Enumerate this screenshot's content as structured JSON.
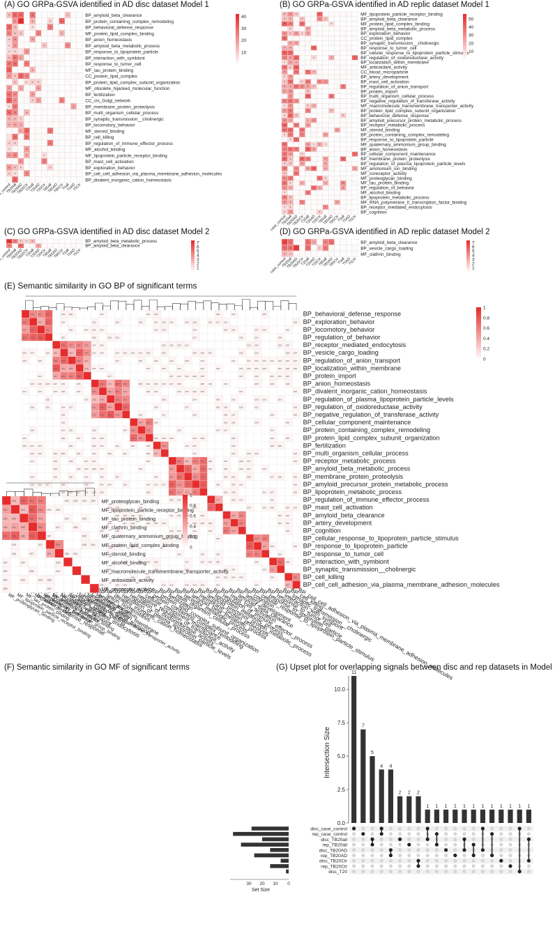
{
  "panels": {
    "A": {
      "title": "(A) GO GRPa-GSVA identified in AD disc dataset Model 1"
    },
    "B": {
      "title": "(B) GO GRPa-GSVA identified in AD replic dataset Model 1"
    },
    "C": {
      "title": "(C) GO GRPa-GSVA identified in AD disc dataset Model 2"
    },
    "D": {
      "title": "(D) GO GRPa-GSVA identified in AD replic dataset Model 2"
    },
    "E": {
      "title": "(E) Semantic similarity in GO BP of significant terms"
    },
    "F": {
      "title": "(F) Semantic similarity in GO MF of significant terms"
    },
    "G": {
      "title": "(G) Upset plot for overlapping signals between disc and rep datasets in Model 1."
    }
  },
  "chart_data": [
    {
      "id": "A",
      "type": "heatmap",
      "title": "(A) GO GRPa-GSVA identified in AD disc dataset Model 1",
      "columns": [
        "case_control",
        "TB20all",
        "TB20AD",
        "TB20Ctr",
        "T20all",
        "T20AD",
        "T20Ctr",
        "TB5all",
        "TB5AD",
        "TB5Ctr",
        "T5all",
        "T5AD",
        "T5Ctr"
      ],
      "rows": [
        "BP_amyloid_beta_clearance",
        "BP_protein_containing_complex_remodeling",
        "BP_behavioral_defense_response",
        "MF_protein_lipid_complex_binding",
        "BP_anion_homeostasis",
        "BP_amyloid_beta_metabolic_process",
        "BP_response_to_lipoprotein_particle",
        "BP_interaction_with_symbiont",
        "BP_response_to_tumor_cell",
        "MF_tau_protein_binding",
        "CC_protein_lipid_complex",
        "BP_protein_lipid_complex_subunit_organization",
        "MF_obsolete_hijacked_molecular_function",
        "BP_fertilization",
        "CC_cis_Golgi_network",
        "BP_membrane_protein_proteolysis",
        "BP_multi_organism_cellular_process",
        "BP_synaptic_transmission__cholinergic",
        "BP_locomotory_behavior",
        "MF_steroid_binding",
        "BP_cell_killing",
        "BP_regulation_of_immune_effector_process",
        "MF_alcohol_binding",
        "MF_lipoprotein_particle_receptor_binding",
        "BP_mast_cell_activation",
        "BP_exploration_behavior",
        "BP_cell_cell_adhesion_via_plasma_membrane_adhesion_molecules",
        "BP_divalent_inorganic_cation_homeostasis"
      ],
      "colorbar": {
        "ticks": [
          40,
          30,
          20,
          10
        ],
        "min": 0,
        "max": 42
      }
    },
    {
      "id": "B",
      "type": "heatmap",
      "title": "(B) GO GRPa-GSVA identified in AD replic dataset Model 1",
      "columns": [
        "case_control",
        "TB20all",
        "TB20AD",
        "TB20Ctr",
        "T20all",
        "T20AD",
        "T20Ctr",
        "TB5all",
        "TB5AD",
        "TB5Ctr",
        "T5all",
        "T5AD",
        "T5Ctr"
      ],
      "rows": [
        "MF_lipoprotein_particle_receptor_binding",
        "BP_amyloid_beta_clearance",
        "MF_protein_lipid_complex_binding",
        "BP_amyloid_beta_metabolic_process",
        "BP_exploration_behavior",
        "CC_protein_lipid_complex",
        "BP_synaptic_transmission__cholinergic",
        "BP_response_to_tumor_cell",
        "BP_cellular_response_to_lipoprotein_particle_stimulus",
        "BP_regulation_of_oxidoreductase_activity",
        "BP_localization_within_membrane",
        "MF_antioxidant_activity",
        "CC_blood_microparticle",
        "BP_artery_development",
        "BP_mast_cell_activation",
        "BP_regulation_of_anion_transport",
        "BP_protein_import",
        "BP_multi_organism_cellular_process",
        "BP_negative_regulation_of_transferase_activity",
        "MF_macromolecule_transmembrane_transporter_activity",
        "BP_protein_lipid_complex_subunit_organization",
        "BP_behavioral_defense_response",
        "BP_amyloid_precursor_protein_metabolic_process",
        "BP_receptor_metabolic_process",
        "MF_steroid_binding",
        "BP_protein_containing_complex_remodeling",
        "BP_response_to_lipoprotein_particle",
        "MF_quaternary_ammonium_group_binding",
        "BP_anion_homeostasis",
        "BP_cellular_component_maintenance",
        "BP_membrane_protein_proteolysis",
        "BP_regulation_of_plasma_lipoprotein_particle_levels",
        "MF_ammonium_ion_binding",
        "MF_coreceptor_activity",
        "MF_proteoglycan_binding",
        "MF_tau_protein_binding",
        "BP_regulation_of_behavior",
        "MF_alcohol_binding",
        "BP_lipoprotein_metabolic_process",
        "MF_RNA_polymerase_II_transcription_factor_binding",
        "BP_receptor_mediated_endocytosis",
        "BP_cognition"
      ],
      "colorbar": {
        "ticks": [
          50,
          40,
          30,
          20,
          10
        ],
        "min": 0,
        "max": 56
      }
    },
    {
      "id": "C",
      "type": "heatmap",
      "title": "(C) GO GRPa-GSVA identified in AD disc dataset Model 2",
      "columns": [
        "case_control",
        "TB20all",
        "TB20AD",
        "TB20Ctr",
        "T20all",
        "T20AD",
        "T20Ctr",
        "TB5all",
        "TB5AD",
        "TB5Ctr",
        "T5all",
        "T5AD",
        "T5Ctr"
      ],
      "rows": [
        "BP_amyloid_beta_metabolic_process",
        "BP_amyloid_beta_clearance"
      ],
      "colorbar": {
        "ticks": [
          7,
          6,
          5,
          4,
          3,
          2,
          1
        ],
        "min": 0,
        "max": 7.5
      }
    },
    {
      "id": "D",
      "type": "heatmap",
      "title": "(D) GO GRPa-GSVA identified in AD replic dataset Model 2",
      "columns": [
        "case_control",
        "TB20all",
        "TB20AD",
        "TB20Ctr",
        "T20all",
        "T20AD",
        "T20Ctr",
        "TB5all",
        "TB5AD",
        "TB5Ctr",
        "T5all",
        "T5AD",
        "T5Ctr"
      ],
      "rows": [
        "BP_amyloid_beta_clearance",
        "BP_vesicle_cargo_loading",
        "MF_clathrin_binding"
      ],
      "colorbar": {
        "ticks": [
          7,
          6,
          5,
          4,
          3,
          2,
          1
        ],
        "min": 0,
        "max": 7.5
      }
    },
    {
      "id": "E",
      "type": "heatmap",
      "title": "(E) Semantic similarity in GO BP of significant terms",
      "terms": [
        "BP_behavioral_defense_response",
        "BP_exploration_behavior",
        "BP_locomotory_behavior",
        "BP_regulation_of_behavior",
        "BP_receptor_mediated_endocytosis",
        "BP_vesicle_cargo_loading",
        "BP_regulation_of_anion_transport",
        "BP_localization_within_membrane",
        "BP_protein_import",
        "BP_anion_homeostasis",
        "BP_divalent_inorganic_cation_homeostasis",
        "BP_regulation_of_plasma_lipoprotein_particle_levels",
        "BP_regulation_of_oxidoreductase_activity",
        "BP_negative_regulation_of_transferase_activity",
        "BP_cellular_component_maintenance",
        "BP_protein_containing_complex_remodeling",
        "BP_protein_lipid_complex_subunit_organization",
        "BP_fertilization",
        "BP_multi_organism_cellular_process",
        "BP_receptor_metabolic_process",
        "BP_amyloid_beta_metabolic_process",
        "BP_membrane_protein_proteolysis",
        "BP_amyloid_precursor_protein_metabolic_process",
        "BP_lipoprotein_metabolic_process",
        "BP_regulation_of_immune_effector_process",
        "BP_mast_cell_activation",
        "BP_amyloid_beta_clearance",
        "BP_artery_development",
        "BP_cognition",
        "BP_cellular_response_to_lipoprotein_particle_stimulus",
        "BP_response_to_lipoprotein_particle",
        "BP_response_to_tumor_cell",
        "BP_interaction_with_symbiont",
        "BP_synaptic_transmission__cholinergic",
        "BP_cell_killing",
        "BP_cell_cell_adhesion_via_plasma_membrane_adhesion_molecules"
      ],
      "colorbar": {
        "ticks": [
          1,
          0.8,
          0.6,
          0.4,
          0.2,
          0
        ],
        "min": 0,
        "max": 1
      }
    },
    {
      "id": "F",
      "type": "heatmap",
      "title": "(F) Semantic similarity in GO MF of significant terms",
      "terms": [
        "MF_proteoglycan_binding",
        "MF_lipoprotein_particle_receptor_binding",
        "MF_tau_protein_binding",
        "MF_clathrin_binding",
        "MF_quaternary_ammonium_group_binding",
        "MF_protein_lipid_complex_binding",
        "MF_steroid_binding",
        "MF_alcohol_binding",
        "MF_macromolecule_transmembrane_transporter_activity",
        "MF_antioxidant_activity",
        "MF_coreceptor_activity"
      ],
      "colorbar": {
        "ticks": [
          1,
          0.8,
          0.6,
          0.4,
          0.2,
          0
        ],
        "min": 0,
        "max": 1
      }
    },
    {
      "id": "G",
      "type": "bar",
      "title": "(G) Upset plot for overlapping signals between disc and rep datasets in Model 1.",
      "ylabel": "Intersection Size",
      "yticks": [
        0.0,
        2.5,
        5.0,
        7.5,
        10.0
      ],
      "ylim": [
        0,
        11
      ],
      "values": [
        11,
        7,
        5,
        4,
        4,
        2,
        2,
        2,
        1,
        1,
        1,
        1,
        1,
        1,
        1,
        1,
        1,
        1,
        1,
        1
      ],
      "sets": [
        "disc_case_control",
        "rep_case_control",
        "disc_TB20all",
        "rep_TB20all",
        "disc_TB20AD",
        "rep_TB20AD",
        "disc_TB20Ctr",
        "rep_TB20Ctr",
        "disc_T20"
      ],
      "set_size_label": "Set Size",
      "set_size_ticks": [
        30,
        20,
        10,
        0
      ],
      "set_sizes": [
        28,
        42,
        20,
        36,
        14,
        26,
        6,
        14,
        2
      ]
    }
  ]
}
